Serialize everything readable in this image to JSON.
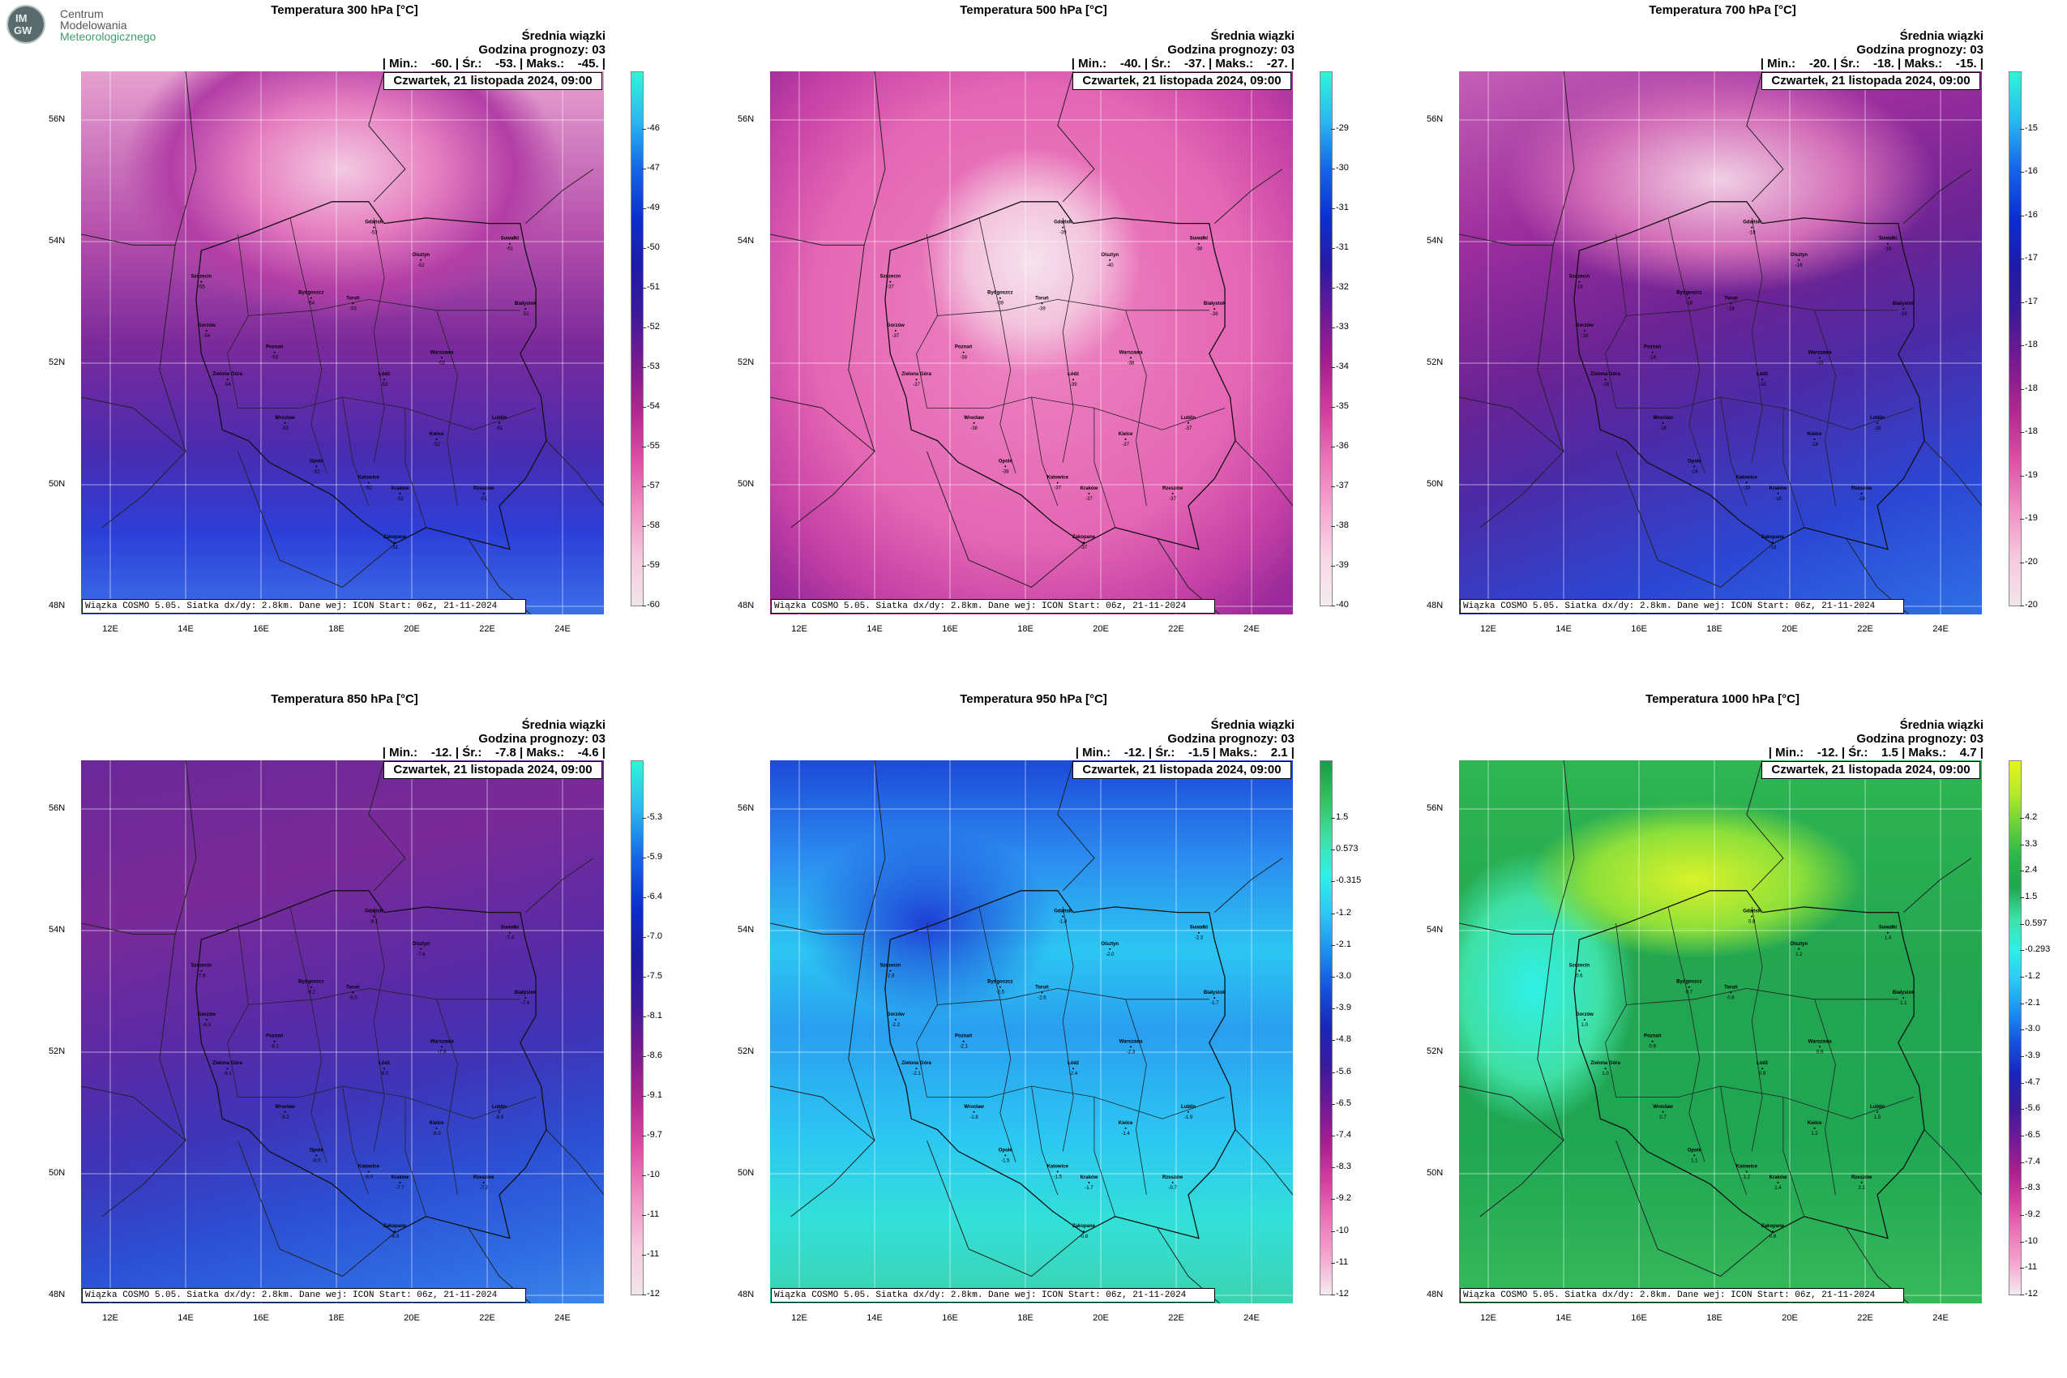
{
  "logo": {
    "line1": "Centrum",
    "line2": "Modelowania",
    "line3": "Meteorologicznego",
    "mark1": "IM",
    "mark2": "GW"
  },
  "date_label": "Czwartek, 21 listopada 2024, 09:00",
  "footer": "Wiązka COSMO 5.05. Siatka dx/dy: 2.8km. Dane wej: ICON Start: 06z, 21-11-2024",
  "info_line1": "Średnia wiązki",
  "info_line2": "Godzina prognozy: 03",
  "lat_labels": [
    "56N",
    "54N",
    "52N",
    "50N",
    "48N"
  ],
  "lon_labels": [
    "12E",
    "14E",
    "16E",
    "18E",
    "20E",
    "22E",
    "24E"
  ],
  "cities": [
    "Gdańsk",
    "Olsztyn",
    "Suwałki",
    "Szczecin",
    "Bydgoszcz",
    "Toruń",
    "Białystok",
    "Gorzów",
    "Poznań",
    "Warszawa",
    "Zielona Góra",
    "Łódź",
    "Lublin",
    "Wrocław",
    "Kielce",
    "Opole",
    "Katowice",
    "Kraków",
    "Rzeszów",
    "Zakopane"
  ],
  "panels": [
    {
      "title": "Temperatura 300 hPa [°C]",
      "stats": "| Min.:    -60. | Śr.:    -53. | Maks.:    -45. |",
      "scale": "purple-blue",
      "ticks": [
        "-46",
        "-47",
        "-49",
        "-50",
        "-51",
        "-52",
        "-53",
        "-54",
        "-55",
        "-57",
        "-58",
        "-59",
        "-60"
      ],
      "values": [
        "-53",
        "-52",
        "-51",
        "-55",
        "-54",
        "-53",
        "-51",
        "-54",
        "-53",
        "-52",
        "-54",
        "-53",
        "-51",
        "-53",
        "-52",
        "-52",
        "-52",
        "-52",
        "-51",
        "-51"
      ]
    },
    {
      "title": "Temperatura 500 hPa [°C]",
      "stats": "| Min.:    -40. | Śr.:    -37. | Maks.:    -27. |",
      "scale": "pink",
      "ticks": [
        "-29",
        "-30",
        "-31",
        "-31",
        "-32",
        "-33",
        "-34",
        "-35",
        "-36",
        "-37",
        "-38",
        "-39",
        "-40"
      ],
      "values": [
        "-39",
        "-40",
        "-38",
        "-37",
        "-39",
        "-39",
        "-38",
        "-37",
        "-38",
        "-38",
        "-37",
        "-39",
        "-37",
        "-38",
        "-37",
        "-38",
        "-37",
        "-37",
        "-37",
        "-37"
      ]
    },
    {
      "title": "Temperatura 700 hPa [°C]",
      "stats": "| Min.:    -20. | Śr.:    -18. | Maks.:    -15. |",
      "scale": "purple-blue",
      "ticks": [
        "-15",
        "-16",
        "-16",
        "-17",
        "-17",
        "-18",
        "-18",
        "-18",
        "-19",
        "-19",
        "-20",
        "-20"
      ],
      "values": [
        "-18",
        "-18",
        "-18",
        "-18",
        "-18",
        "-18",
        "-18",
        "-18",
        "-18",
        "-18",
        "-18",
        "-18",
        "-18",
        "-18",
        "-18",
        "-18",
        "-18",
        "-18",
        "-18",
        "-18"
      ]
    },
    {
      "title": "Temperatura 850 hPa [°C]",
      "stats": "| Min.:    -12. | Śr.:    -7.8 | Maks.:    -4.6 |",
      "scale": "purple-blue",
      "ticks": [
        "-5.3",
        "-5.9",
        "-6.4",
        "-7.0",
        "-7.5",
        "-8.1",
        "-8.6",
        "-9.1",
        "-9.7",
        "-10",
        "-11",
        "-11",
        "-12"
      ],
      "values": [
        "-8.1",
        "-7.6",
        "-7.4",
        "-7.9",
        "-8.2",
        "-8.0",
        "-7.6",
        "-8.3",
        "-8.1",
        "-7.9",
        "-8.1",
        "-8.0",
        "-6.9",
        "-8.2",
        "-8.0",
        "-8.0",
        "-8.0",
        "-7.7",
        "-7.2",
        "-6.9"
      ]
    },
    {
      "title": "Temperatura 950 hPa [°C]",
      "stats": "| Min.:    -12. | Śr.:    -1.5 | Maks.:    2.1 |",
      "scale": "blue-green",
      "ticks": [
        "1.5",
        "0.573",
        "-0.315",
        "-1.2",
        "-2.1",
        "-3.0",
        "-3.9",
        "-4.8",
        "-5.6",
        "-6.5",
        "-7.4",
        "-8.3",
        "-9.2",
        "-10",
        "-11",
        "-12"
      ],
      "values": [
        "-1.8",
        "-2.0",
        "-2.3",
        "-2.8",
        "-2.5",
        "-2.6",
        "-1.7",
        "-2.2",
        "-2.1",
        "-2.3",
        "-2.1",
        "-2.4",
        "-1.9",
        "-1.8",
        "-1.4",
        "-1.5",
        "-1.5",
        "-1.7",
        "-0.7",
        "-0.8"
      ]
    },
    {
      "title": "Temperatura 1000 hPa [°C]",
      "stats": "| Min.:    -12. | Śr.:    1.5 | Maks.:    4.7 |",
      "scale": "green",
      "ticks": [
        "4.2",
        "3.3",
        "2.4",
        "1.5",
        "0.597",
        "-0.293",
        "-1.2",
        "-2.1",
        "-3.0",
        "-3.9",
        "-4.7",
        "-5.6",
        "-6.5",
        "-7.4",
        "-8.3",
        "-9.2",
        "-10",
        "-11",
        "-12"
      ],
      "values": [
        "0.8",
        "1.2",
        "1.4",
        "0.6",
        "0.7",
        "0.8",
        "1.1",
        "1.0",
        "0.9",
        "0.9",
        "1.0",
        "0.9",
        "1.5",
        "0.7",
        "1.2",
        "1.1",
        "1.2",
        "1.4",
        "2.1",
        "0.8"
      ]
    }
  ]
}
